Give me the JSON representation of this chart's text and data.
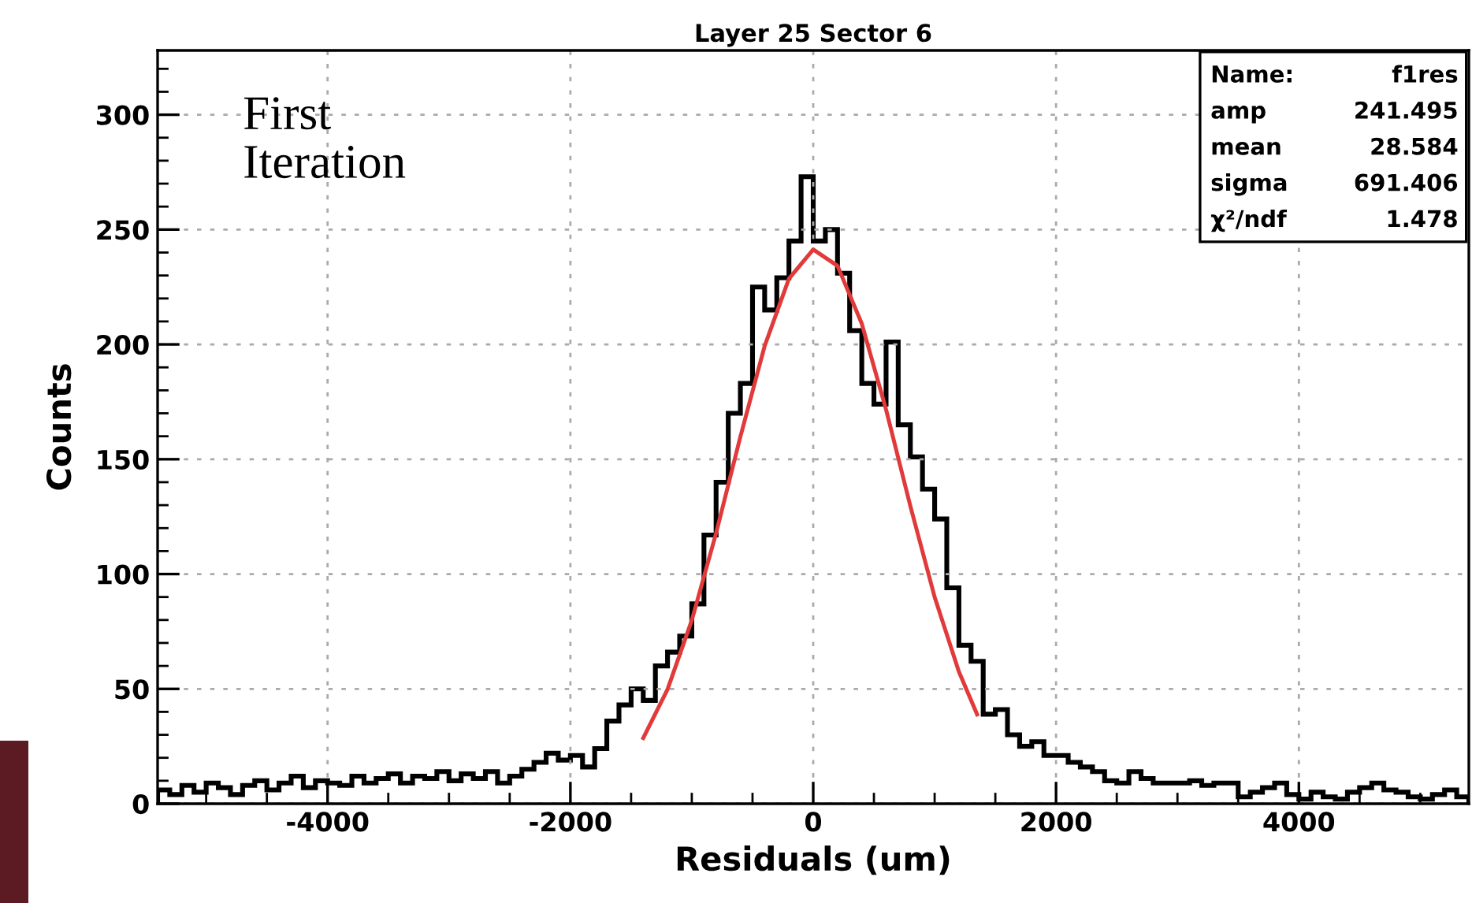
{
  "chart_data": {
    "type": "histogram",
    "title": "Layer 25 Sector 6",
    "xlabel": "Residuals (um)",
    "ylabel": "Counts",
    "bins": [
      -5400,
      -5300,
      -5200,
      -5100,
      -5000,
      -4900,
      -4800,
      -4700,
      -4600,
      -4500,
      -4400,
      -4300,
      -4200,
      -4100,
      -4000,
      -3900,
      -3800,
      -3700,
      -3600,
      -3500,
      -3400,
      -3300,
      -3200,
      -3100,
      -3000,
      -2900,
      -2800,
      -2700,
      -2600,
      -2500,
      -2400,
      -2300,
      -2200,
      -2100,
      -2000,
      -1900,
      -1800,
      -1700,
      -1600,
      -1500,
      -1400,
      -1300,
      -1200,
      -1100,
      -1000,
      -900,
      -800,
      -700,
      -600,
      -500,
      -400,
      -300,
      -200,
      -100,
      0,
      100,
      200,
      300,
      400,
      500,
      600,
      700,
      800,
      900,
      1000,
      1100,
      1200,
      1300,
      1400,
      1500,
      1600,
      1700,
      1800,
      1900,
      2000,
      2100,
      2200,
      2300,
      2400,
      2500,
      2600,
      2700,
      2800,
      2900,
      3000,
      3100,
      3200,
      3300,
      3400,
      3500,
      3600,
      3700,
      3800,
      3900,
      4000,
      4100,
      4200,
      4300,
      4400,
      4500,
      4600,
      4700,
      4800,
      4900,
      5000,
      5100,
      5200,
      5300,
      5400
    ],
    "values": [
      6,
      4,
      8,
      5,
      9,
      7,
      4,
      8,
      10,
      6,
      9,
      12,
      7,
      10,
      9,
      8,
      12,
      9,
      11,
      13,
      9,
      12,
      11,
      14,
      10,
      13,
      11,
      14,
      9,
      12,
      15,
      18,
      22,
      19,
      21,
      16,
      24,
      36,
      43,
      50,
      45,
      60,
      66,
      73,
      87,
      117,
      140,
      170,
      183,
      225,
      215,
      229,
      245,
      273,
      245,
      250,
      231,
      206,
      183,
      174,
      201,
      165,
      151,
      137,
      124,
      94,
      69,
      62,
      39,
      41,
      30,
      25,
      27,
      21,
      21,
      18,
      16,
      14,
      10,
      9,
      14,
      11,
      9,
      9,
      9,
      10,
      8,
      9,
      9,
      3,
      5,
      7,
      9,
      4,
      2,
      5,
      3,
      2,
      5,
      7,
      9,
      6,
      5,
      3,
      2,
      4,
      6,
      3
    ],
    "color": "#000000",
    "series": [
      {
        "type": "line",
        "color": "#e03a3a",
        "x": [
          -1400,
          -1200,
          -1000,
          -800,
          -600,
          -400,
          -200,
          0,
          200,
          400,
          600,
          800,
          1000,
          1200,
          1350
        ],
        "values": [
          28.6,
          49.8,
          79.9,
          117.8,
          159.8,
          199.3,
          228.6,
          241.3,
          234.2,
          209.0,
          171.6,
          129.6,
          90.0,
          57.5,
          38.9
        ]
      }
    ],
    "xlim": [
      -5400,
      5400
    ],
    "ylim": [
      0,
      328
    ],
    "xticks": [
      -4000,
      -2000,
      0,
      2000,
      4000
    ],
    "yticks": [
      0,
      50,
      100,
      150,
      200,
      250,
      300
    ],
    "grid": true,
    "annotations": [
      "First\nIteration",
      "Name:   f1res",
      "amp   241.495",
      "mean   28.584",
      "sigma   691.406",
      "χ²/ndf   1.478"
    ]
  }
}
